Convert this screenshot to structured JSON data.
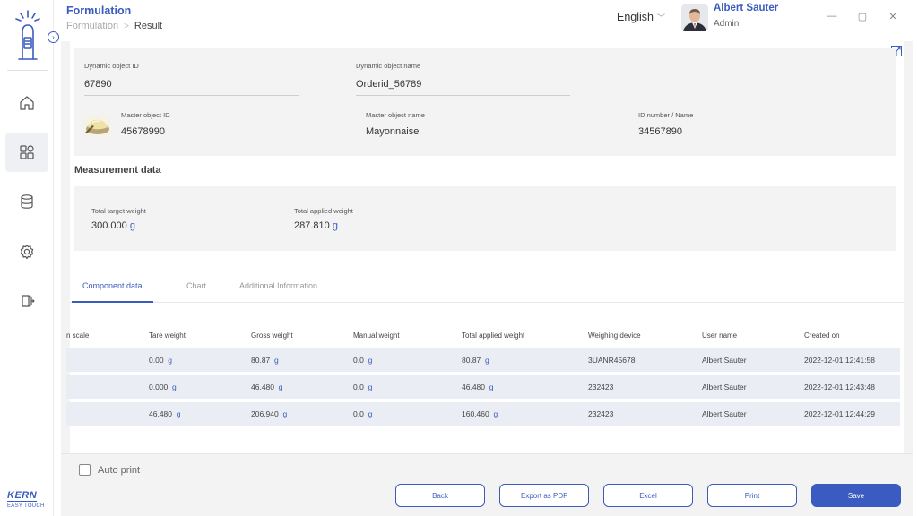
{
  "header": {
    "title": "Formulation",
    "breadcrumb": {
      "parent": "Formulation",
      "current": "Result"
    },
    "language": "English",
    "user": {
      "name": "Albert Sauter",
      "role": "Admin"
    }
  },
  "brand": {
    "name": "KERN",
    "subtitle": "EASY TOUCH"
  },
  "info": {
    "dynamic_object_id_label": "Dynamic object ID",
    "dynamic_object_id": "67890",
    "dynamic_object_name_label": "Dynamic object name",
    "dynamic_object_name": "Orderid_56789",
    "master_object_id_label": "Master object ID",
    "master_object_id": "45678990",
    "master_object_name_label": "Master object name",
    "master_object_name": "Mayonnaise",
    "id_number_label": "ID number / Name",
    "id_number": "34567890"
  },
  "measurement": {
    "title": "Measurement data",
    "target_label": "Total target weight",
    "target_value": "300.000",
    "applied_label": "Total applied weight",
    "applied_value": "287.810",
    "unit": "g"
  },
  "tabs": [
    {
      "label": "Component data",
      "active": true
    },
    {
      "label": "Chart",
      "active": false
    },
    {
      "label": "Additional Information",
      "active": false
    }
  ],
  "table": {
    "headers": [
      "n scale",
      "Tare weight",
      "Gross weight",
      "Manual weight",
      "Total applied weight",
      "Weighing device",
      "User name",
      "Created on"
    ],
    "unit": "g",
    "rows": [
      {
        "tare": "0.00",
        "gross": "80.87",
        "manual": "0.0",
        "total": "80.87",
        "device": "3UANR45678",
        "user": "Albert Sauter",
        "created": "2022-12-01 12:41:58"
      },
      {
        "tare": "0.000",
        "gross": "46.480",
        "manual": "0.0",
        "total": "46.480",
        "device": "232423",
        "user": "Albert Sauter",
        "created": "2022-12-01 12:43:48"
      },
      {
        "tare": "46.480",
        "gross": "206.940",
        "manual": "0.0",
        "total": "160.460",
        "device": "232423",
        "user": "Albert Sauter",
        "created": "2022-12-01 12:44:29"
      }
    ]
  },
  "footer": {
    "auto_print": "Auto print",
    "buttons": {
      "back": "Back",
      "export_pdf": "Export as PDF",
      "excel": "Excel",
      "print": "Print",
      "save": "Save"
    }
  },
  "icons": {
    "logo": "scale-hand-icon",
    "nav": [
      "home-icon",
      "dashboard-icon",
      "database-icon",
      "gear-icon",
      "logout-icon"
    ]
  },
  "colors": {
    "accent": "#3a5bbf",
    "panel": "#f3f3f3",
    "row": "#eaeef4"
  }
}
